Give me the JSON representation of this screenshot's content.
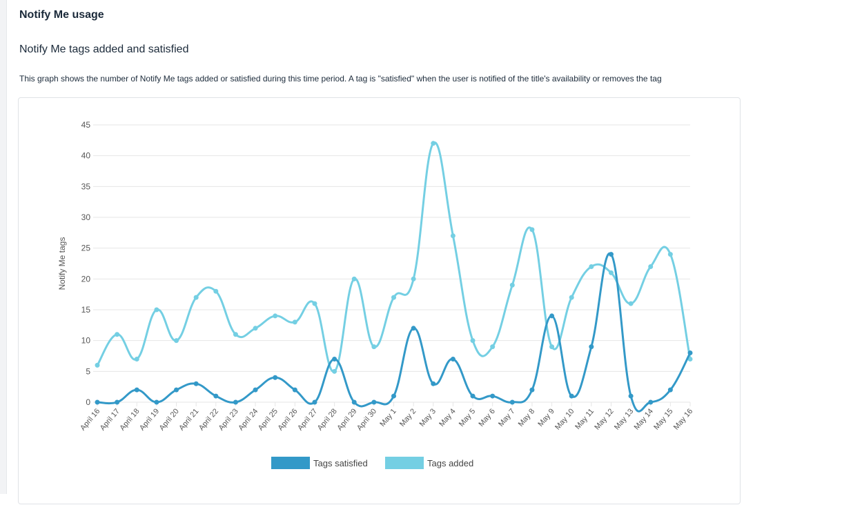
{
  "page": {
    "section_title": "Notify Me usage",
    "subsection_title": "Notify Me tags added and satisfied",
    "description": "This graph shows the number of Notify Me tags added or satisfied during this time period. A tag is \"satisfied\" when the user is notified of the title's availability or removes the tag"
  },
  "chart_data": {
    "type": "line",
    "ylabel": "Notify Me tags",
    "xlabel": "",
    "ylim": [
      0,
      45
    ],
    "yticks": [
      0,
      5,
      10,
      15,
      20,
      25,
      30,
      35,
      40,
      45
    ],
    "grid": true,
    "legend_position": "bottom",
    "categories": [
      "April 16",
      "April 17",
      "April 18",
      "April 19",
      "April 20",
      "April 21",
      "April 22",
      "April 23",
      "April 24",
      "April 25",
      "April 26",
      "April 27",
      "April 28",
      "April 29",
      "April 30",
      "May 1",
      "May 2",
      "May 3",
      "May 4",
      "May 5",
      "May 6",
      "May 7",
      "May 8",
      "May 9",
      "May 10",
      "May 11",
      "May 12",
      "May 13",
      "May 14",
      "May 15",
      "May 16"
    ],
    "series": [
      {
        "name": "Tags satisfied",
        "color": "#3399c8",
        "values": [
          0,
          0,
          2,
          0,
          2,
          3,
          1,
          0,
          2,
          4,
          2,
          0,
          7,
          0,
          0,
          1,
          12,
          3,
          7,
          1,
          1,
          0,
          2,
          14,
          1,
          9,
          24,
          1,
          0,
          2,
          8
        ]
      },
      {
        "name": "Tags added",
        "color": "#74cfe3",
        "values": [
          6,
          11,
          7,
          15,
          10,
          17,
          18,
          11,
          12,
          14,
          13,
          16,
          5,
          20,
          9,
          17,
          20,
          42,
          27,
          10,
          9,
          19,
          28,
          9,
          17,
          22,
          21,
          16,
          22,
          24,
          7
        ]
      }
    ]
  }
}
